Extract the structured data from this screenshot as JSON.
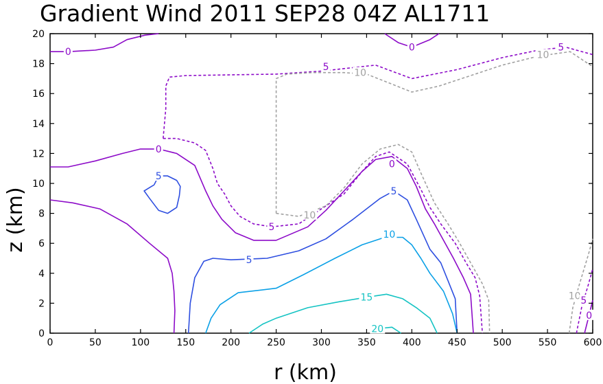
{
  "chart_data": {
    "type": "contour",
    "title": "Gradient Wind 2011 SEP28 04Z  AL1711",
    "xlabel": "r (km)",
    "ylabel": "z (km)",
    "xlim": [
      0,
      600
    ],
    "ylim": [
      0,
      20
    ],
    "xticks": [
      0,
      50,
      100,
      150,
      200,
      250,
      300,
      350,
      400,
      450,
      500,
      550,
      600
    ],
    "yticks": [
      0,
      2,
      4,
      6,
      8,
      10,
      12,
      14,
      16,
      18,
      20
    ],
    "levels": [
      {
        "value": -10,
        "label": "10",
        "color": "#a0a0a0",
        "dashed": true
      },
      {
        "value": -5,
        "label": "5",
        "color": "#8c0ac8",
        "dashed": true
      },
      {
        "value": 0,
        "label": "0",
        "color": "#8c0ac8",
        "dashed": false
      },
      {
        "value": 5,
        "label": "5",
        "color": "#2d4ee0",
        "dashed": false
      },
      {
        "value": 10,
        "label": "10",
        "color": "#0aa0e6",
        "dashed": false
      },
      {
        "value": 15,
        "label": "15",
        "color": "#14c3c3",
        "dashed": false
      },
      {
        "value": 20,
        "label": "20",
        "color": "#14c3c3",
        "dashed": false
      }
    ],
    "contours": [
      {
        "level": 0,
        "points": [
          [
            0,
            18.8
          ],
          [
            20,
            18.8
          ],
          [
            50,
            18.9
          ],
          [
            70,
            19.1
          ],
          [
            85,
            19.6
          ],
          [
            105,
            19.9
          ],
          [
            120,
            20
          ]
        ],
        "labels": [
          {
            "x": 20,
            "y": 18.8,
            "text": "0"
          }
        ]
      },
      {
        "level": 0,
        "points": [
          [
            370,
            20
          ],
          [
            385,
            19.4
          ],
          [
            400,
            19.1
          ],
          [
            420,
            19.6
          ],
          [
            430,
            20
          ]
        ],
        "labels": [
          {
            "x": 400,
            "y": 19.1,
            "text": "0"
          }
        ]
      },
      {
        "level": -5,
        "points": [
          [
            125,
            13
          ],
          [
            128,
            15
          ],
          [
            128,
            16.5
          ],
          [
            132,
            17.1
          ],
          [
            150,
            17.2
          ],
          [
            250,
            17.3
          ],
          [
            300,
            17.5
          ],
          [
            360,
            17.9
          ],
          [
            400,
            17
          ],
          [
            450,
            17.6
          ],
          [
            500,
            18.4
          ],
          [
            540,
            18.9
          ],
          [
            570,
            19.1
          ],
          [
            600,
            18.6
          ]
        ],
        "labels": [
          {
            "x": 305,
            "y": 17.8,
            "text": "5"
          },
          {
            "x": 565,
            "y": 19.1,
            "text": "5"
          }
        ]
      },
      {
        "level": -10,
        "points": [
          [
            250,
            8
          ],
          [
            250,
            17
          ],
          [
            262,
            17.3
          ],
          [
            290,
            17.4
          ],
          [
            325,
            17.4
          ],
          [
            350,
            17.3
          ],
          [
            375,
            16.7
          ],
          [
            400,
            16.1
          ],
          [
            430,
            16.5
          ],
          [
            470,
            17.3
          ],
          [
            500,
            17.9
          ],
          [
            540,
            18.5
          ],
          [
            575,
            18.8
          ],
          [
            600,
            17.8
          ]
        ],
        "labels": [
          {
            "x": 343,
            "y": 17.4,
            "text": "10"
          },
          {
            "x": 545,
            "y": 18.6,
            "text": "10"
          }
        ]
      },
      {
        "level": -5,
        "points": [
          [
            125,
            13
          ],
          [
            140,
            13
          ],
          [
            160,
            12.7
          ],
          [
            172,
            12.2
          ],
          [
            180,
            11
          ],
          [
            185,
            10
          ],
          [
            193,
            9.3
          ],
          [
            200,
            8.5
          ],
          [
            210,
            7.8
          ],
          [
            225,
            7.3
          ],
          [
            245,
            7.1
          ],
          [
            275,
            7.3
          ],
          [
            300,
            8.3
          ],
          [
            325,
            9.3
          ],
          [
            345,
            10.8
          ],
          [
            360,
            11.8
          ],
          [
            375,
            12.1
          ],
          [
            395,
            11.3
          ],
          [
            410,
            9.6
          ],
          [
            420,
            8.4
          ],
          [
            432,
            7.3
          ],
          [
            448,
            6
          ],
          [
            460,
            4.7
          ],
          [
            470,
            3.7
          ],
          [
            475,
            2.5
          ],
          [
            478,
            0
          ]
        ],
        "labels": [
          {
            "x": 245,
            "y": 7.1,
            "text": "5"
          }
        ]
      },
      {
        "level": -10,
        "points": [
          [
            250,
            8
          ],
          [
            275,
            7.8
          ],
          [
            305,
            8.5
          ],
          [
            325,
            9.7
          ],
          [
            345,
            11.3
          ],
          [
            365,
            12.3
          ],
          [
            385,
            12.6
          ],
          [
            400,
            12.1
          ],
          [
            410,
            10.7
          ],
          [
            425,
            8.7
          ],
          [
            440,
            7.3
          ],
          [
            452,
            6.1
          ],
          [
            465,
            4.7
          ],
          [
            478,
            3.3
          ],
          [
            485,
            2.2
          ],
          [
            486,
            0
          ]
        ],
        "labels": [
          {
            "x": 287,
            "y": 7.9,
            "text": "10"
          }
        ]
      },
      {
        "level": 0,
        "points": [
          [
            0,
            11.1
          ],
          [
            20,
            11.1
          ],
          [
            50,
            11.5
          ],
          [
            80,
            12
          ],
          [
            100,
            12.3
          ],
          [
            120,
            12.3
          ],
          [
            140,
            12
          ],
          [
            160,
            11.2
          ],
          [
            172,
            9.5
          ],
          [
            180,
            8.5
          ],
          [
            190,
            7.6
          ],
          [
            205,
            6.7
          ],
          [
            225,
            6.2
          ],
          [
            250,
            6.2
          ],
          [
            285,
            7.1
          ],
          [
            305,
            8.2
          ],
          [
            325,
            9.5
          ],
          [
            345,
            10.8
          ],
          [
            360,
            11.6
          ],
          [
            378,
            11.8
          ],
          [
            395,
            11
          ],
          [
            405,
            9.8
          ],
          [
            415,
            8.3
          ],
          [
            425,
            7.3
          ],
          [
            435,
            6.2
          ],
          [
            446,
            5
          ],
          [
            457,
            3.7
          ],
          [
            465,
            2.6
          ],
          [
            468,
            0
          ]
        ],
        "labels": [
          {
            "x": 120,
            "y": 12.3,
            "text": "0"
          },
          {
            "x": 378,
            "y": 11.3,
            "text": "0"
          }
        ]
      },
      {
        "level": 0,
        "points": [
          [
            0,
            8.9
          ],
          [
            25,
            8.7
          ],
          [
            55,
            8.3
          ],
          [
            85,
            7.3
          ],
          [
            110,
            6
          ],
          [
            130,
            5
          ],
          [
            135,
            4
          ],
          [
            137,
            2.8
          ],
          [
            138,
            1.5
          ],
          [
            137,
            0
          ]
        ],
        "labels": []
      },
      {
        "level": 5,
        "points": [
          [
            115,
            9.9
          ],
          [
            120,
            10.5
          ],
          [
            130,
            10.5
          ],
          [
            140,
            10.2
          ],
          [
            144,
            9.8
          ],
          [
            143,
            9.2
          ],
          [
            140,
            8.4
          ],
          [
            130,
            8
          ],
          [
            120,
            8.2
          ],
          [
            110,
            9
          ],
          [
            104,
            9.5
          ],
          [
            112,
            9.8
          ],
          [
            115,
            9.9
          ]
        ],
        "labels": [
          {
            "x": 120,
            "y": 10.5,
            "text": "5"
          }
        ]
      },
      {
        "level": 5,
        "points": [
          [
            153,
            0
          ],
          [
            155,
            2
          ],
          [
            160,
            3.7
          ],
          [
            170,
            4.8
          ],
          [
            180,
            5
          ],
          [
            200,
            4.9
          ],
          [
            240,
            5
          ],
          [
            275,
            5.5
          ],
          [
            305,
            6.3
          ],
          [
            335,
            7.6
          ],
          [
            365,
            9
          ],
          [
            380,
            9.5
          ],
          [
            395,
            8.9
          ],
          [
            405,
            7.6
          ],
          [
            420,
            5.6
          ],
          [
            432,
            4.7
          ],
          [
            440,
            3.5
          ],
          [
            448,
            2.3
          ],
          [
            450,
            0
          ]
        ],
        "labels": [
          {
            "x": 220,
            "y": 4.9,
            "text": "5"
          },
          {
            "x": 380,
            "y": 9.5,
            "text": "5"
          }
        ]
      },
      {
        "level": 10,
        "points": [
          [
            172,
            0
          ],
          [
            178,
            1
          ],
          [
            188,
            1.9
          ],
          [
            208,
            2.7
          ],
          [
            250,
            3
          ],
          [
            280,
            3.9
          ],
          [
            315,
            5
          ],
          [
            345,
            5.9
          ],
          [
            370,
            6.4
          ],
          [
            390,
            6.4
          ],
          [
            400,
            5.9
          ],
          [
            410,
            5
          ],
          [
            420,
            4
          ],
          [
            435,
            2.8
          ],
          [
            445,
            1.3
          ],
          [
            450,
            0
          ]
        ],
        "labels": [
          {
            "x": 375,
            "y": 6.6,
            "text": "10"
          }
        ]
      },
      {
        "level": 15,
        "points": [
          [
            220,
            0
          ],
          [
            235,
            0.6
          ],
          [
            250,
            1
          ],
          [
            285,
            1.7
          ],
          [
            320,
            2.1
          ],
          [
            350,
            2.4
          ],
          [
            372,
            2.6
          ],
          [
            390,
            2.3
          ],
          [
            405,
            1.7
          ],
          [
            420,
            1
          ],
          [
            428,
            0
          ]
        ],
        "labels": [
          {
            "x": 350,
            "y": 2.4,
            "text": "15"
          }
        ]
      },
      {
        "level": 20,
        "points": [
          [
            358,
            0
          ],
          [
            362,
            0.3
          ],
          [
            378,
            0.4
          ],
          [
            388,
            0
          ]
        ],
        "labels": [
          {
            "x": 362,
            "y": 0.3,
            "text": "20"
          }
        ]
      },
      {
        "level": -10,
        "points": [
          [
            574,
            0
          ],
          [
            578,
            1.7
          ],
          [
            585,
            3.2
          ],
          [
            595,
            5.2
          ],
          [
            600,
            6.3
          ]
        ],
        "labels": [
          {
            "x": 580,
            "y": 2.5,
            "text": "10"
          }
        ]
      },
      {
        "level": -5,
        "points": [
          [
            582,
            0
          ],
          [
            588,
            1.8
          ],
          [
            595,
            3.2
          ],
          [
            600,
            4.3
          ]
        ],
        "labels": [
          {
            "x": 590,
            "y": 2.2,
            "text": "5"
          }
        ]
      },
      {
        "level": 0,
        "points": [
          [
            591,
            0
          ],
          [
            596,
            1.2
          ],
          [
            600,
            2.2
          ]
        ],
        "labels": [
          {
            "x": 596,
            "y": 1.2,
            "text": "0"
          }
        ]
      }
    ]
  }
}
